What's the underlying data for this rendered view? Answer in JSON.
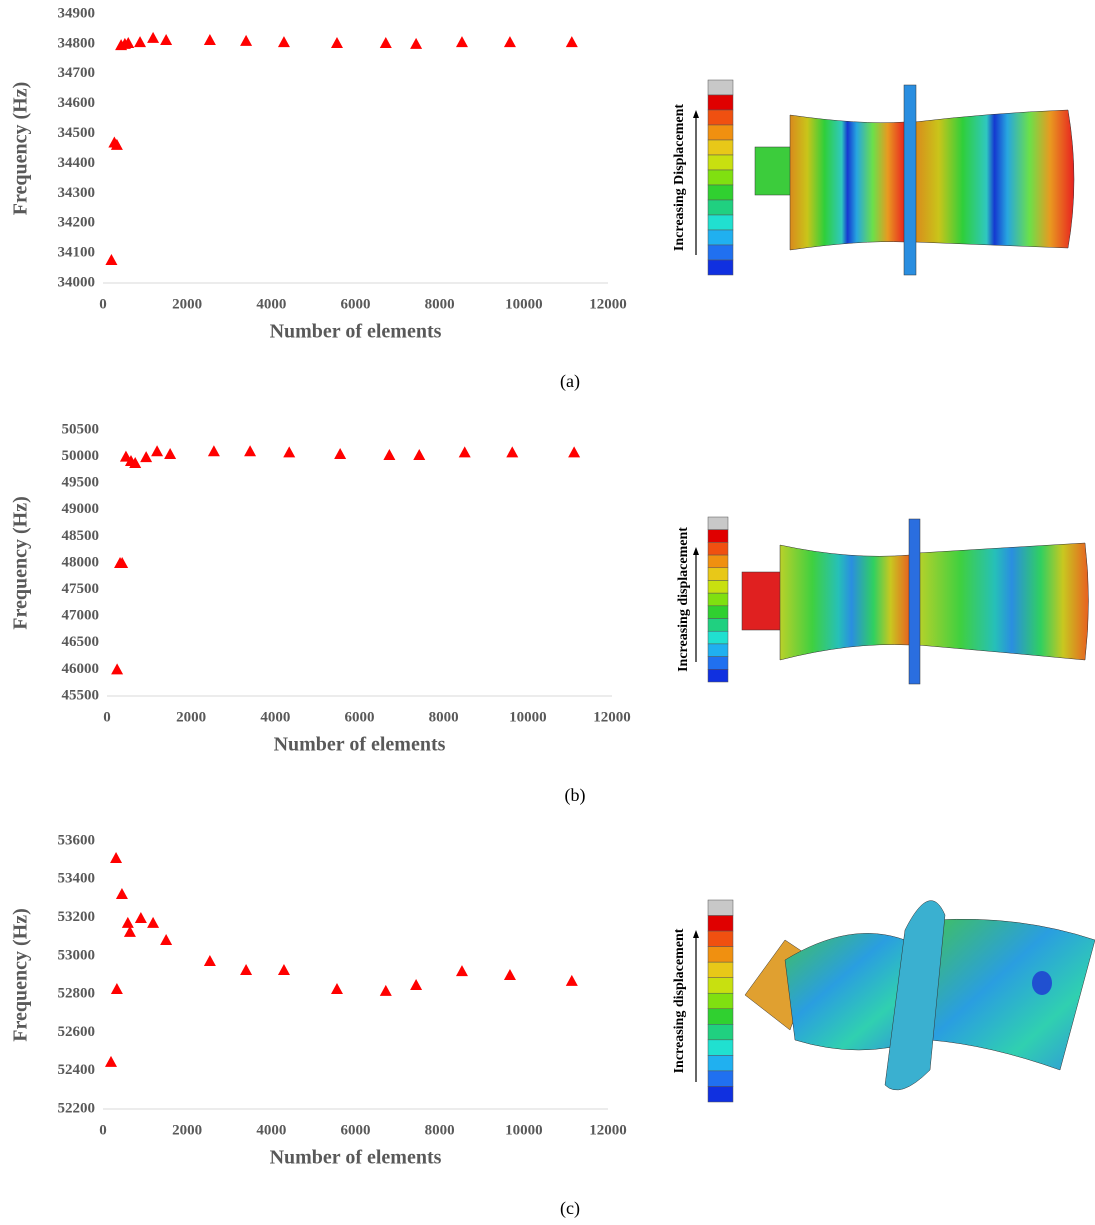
{
  "chart_data": [
    {
      "type": "scatter",
      "caption": "(a)",
      "annotation": "Increasing Displacement",
      "x_label": "Number of elements",
      "y_label": "Frequency (Hz)",
      "color": "#ff0000",
      "grid": false,
      "x": [
        200,
        270,
        330,
        430,
        520,
        600,
        880,
        1190,
        1500,
        2540,
        3400,
        4300,
        5560,
        6720,
        7440,
        8530,
        9670,
        11140
      ],
      "values": [
        34077,
        34470,
        34462,
        34796,
        34800,
        34803,
        34806,
        34820,
        34813,
        34813,
        34810,
        34806,
        34803,
        34803,
        34800,
        34806,
        34806,
        34806
      ],
      "xlim": [
        0,
        12000
      ],
      "xticks": [
        0,
        2000,
        4000,
        6000,
        8000,
        10000,
        12000
      ],
      "ylim": [
        34000,
        34900
      ],
      "yticks": [
        34000,
        34100,
        34200,
        34300,
        34400,
        34500,
        34600,
        34700,
        34800,
        34900
      ]
    },
    {
      "type": "scatter",
      "caption": "(b)",
      "annotation": "Increasing displacement",
      "x_label": "Number of elements",
      "y_label": "Frequency (Hz)",
      "color": "#ff0000",
      "grid": false,
      "x": [
        240,
        310,
        360,
        450,
        570,
        670,
        930,
        1190,
        1500,
        2540,
        3400,
        4330,
        5540,
        6710,
        7420,
        8500,
        9630,
        11100
      ],
      "values": [
        46000,
        48000,
        48000,
        50000,
        49917,
        49880,
        49990,
        50100,
        50050,
        50100,
        50100,
        50080,
        50050,
        50030,
        50030,
        50080,
        50080,
        50080
      ],
      "xlim": [
        0,
        12000
      ],
      "xticks": [
        0,
        2000,
        4000,
        6000,
        8000,
        10000,
        12000
      ],
      "ylim": [
        45500,
        50500
      ],
      "yticks": [
        45500,
        46000,
        46500,
        47000,
        47500,
        48000,
        48500,
        49000,
        49500,
        50000,
        50500
      ]
    },
    {
      "type": "scatter",
      "caption": "(c)",
      "annotation": "Increasing displacement",
      "x_label": "Number of elements",
      "y_label": "Frequency (Hz)",
      "color": "#ff0000",
      "grid": false,
      "x": [
        190,
        310,
        330,
        450,
        590,
        640,
        900,
        1190,
        1500,
        2540,
        3400,
        4300,
        5560,
        6720,
        7440,
        8530,
        9670,
        11140
      ],
      "values": [
        52446,
        53511,
        52827,
        53323,
        53172,
        53125,
        53198,
        53172,
        53083,
        52973,
        52926,
        52926,
        52827,
        52817,
        52848,
        52920,
        52900,
        52869
      ],
      "xlim": [
        0,
        12000
      ],
      "xticks": [
        0,
        2000,
        4000,
        6000,
        8000,
        10000,
        12000
      ],
      "ylim": [
        52200,
        53600
      ],
      "yticks": [
        52200,
        52400,
        52600,
        52800,
        53000,
        53200,
        53400,
        53600
      ]
    }
  ]
}
